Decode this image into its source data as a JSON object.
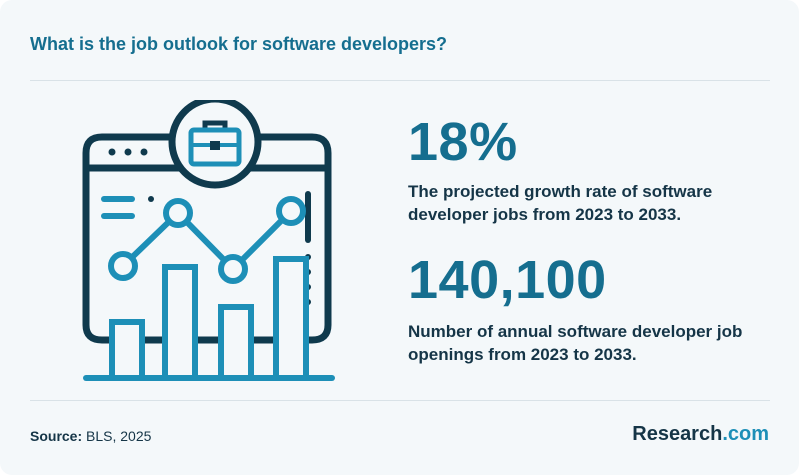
{
  "header": {
    "title": "What is the job outlook for software developers?"
  },
  "stats": [
    {
      "value": "18%",
      "description": "The projected growth rate of software developer jobs from 2023 to 2033."
    },
    {
      "value": "140,100",
      "description": "Number of annual software developer job openings from 2023 to 2033."
    }
  ],
  "footer": {
    "source_label": "Source:",
    "source_value": " BLS, 2025",
    "brand_name": "Research",
    "brand_domain": ".com"
  },
  "illustration": {
    "icon": "browser-chart-briefcase-icon",
    "colors": {
      "dark": "#0f3a4d",
      "accent": "#1d8fb7"
    }
  }
}
